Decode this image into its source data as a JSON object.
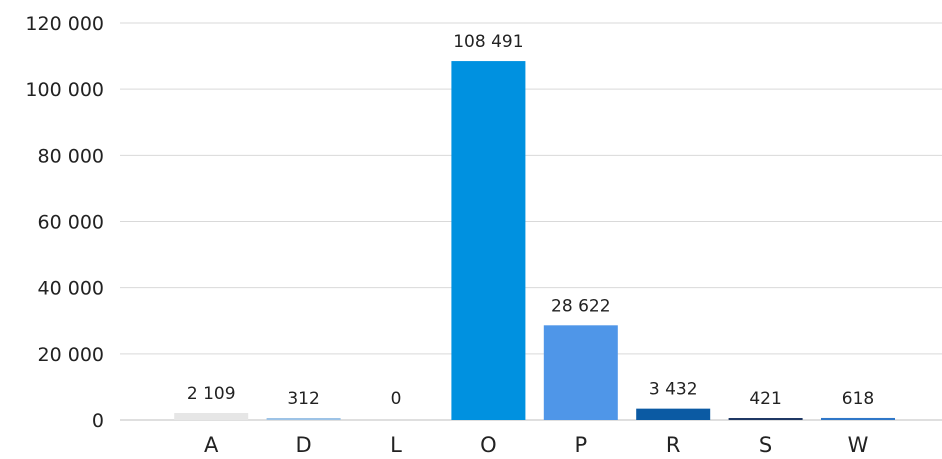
{
  "chart_data": {
    "type": "bar",
    "categories": [
      "A",
      "D",
      "L",
      "O",
      "P",
      "R",
      "S",
      "W"
    ],
    "values": [
      2109,
      312,
      0,
      108491,
      28622,
      3432,
      421,
      618
    ],
    "value_labels": [
      "2 109",
      "312",
      "0",
      "108 491",
      "28 622",
      "3 432",
      "421",
      "618"
    ],
    "colors": [
      "#e6e6e6",
      "#9dc3e6",
      "#9dc3e6",
      "#0091e0",
      "#4f96e8",
      "#0b5aa3",
      "#1f3864",
      "#2f77c8"
    ],
    "ylim": [
      0,
      120000
    ],
    "yticks": [
      0,
      20000,
      40000,
      60000,
      80000,
      100000,
      120000
    ],
    "ytick_labels": [
      "0",
      "20 000",
      "40 000",
      "60 000",
      "80 000",
      "100 000",
      "120 000"
    ],
    "title": "",
    "xlabel": "",
    "ylabel": "",
    "grid": true,
    "legend": "none"
  }
}
